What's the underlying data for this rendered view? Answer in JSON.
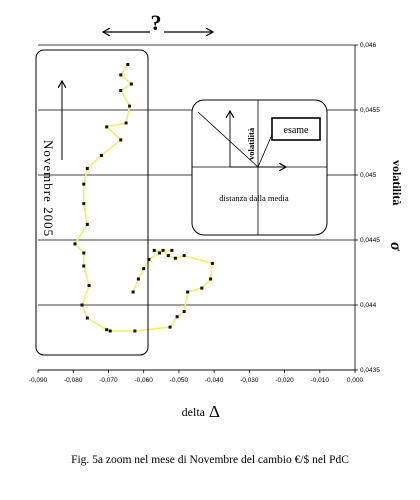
{
  "header": {
    "mark": "?"
  },
  "chart_data": {
    "type": "line",
    "xlabel": "delta",
    "xlabel_symbol": "Δ",
    "ylabel": "volatilità",
    "ylabel_symbol": "σ",
    "xlim": [
      -0.09,
      0.0
    ],
    "ylim": [
      0.0435,
      0.046
    ],
    "x_ticks": [
      -0.09,
      -0.08,
      -0.07,
      -0.06,
      -0.05,
      -0.04,
      -0.03,
      -0.02,
      -0.01,
      0.0
    ],
    "x_tick_labels": [
      "-0,090",
      "-0,080",
      "-0,070",
      "-0,060",
      "-0,050",
      "-0,040",
      "-0,030",
      "-0,020",
      "-0,010",
      "0,000"
    ],
    "y_ticks": [
      0.0435,
      0.044,
      0.0445,
      0.045,
      0.0455,
      0.046
    ],
    "y_tick_labels": [
      "0,0435",
      "0,044",
      "0,0445",
      "0,045",
      "0,0455",
      "0,046"
    ],
    "grid": "horizontal",
    "series": [
      {
        "color": "#f2ee6a",
        "marker_color": "#111111",
        "points": [
          [
            -0.0645,
            0.04585
          ],
          [
            -0.0665,
            0.04577
          ],
          [
            -0.0635,
            0.0457
          ],
          [
            -0.0665,
            0.04565
          ],
          [
            -0.064,
            0.04553
          ],
          [
            -0.065,
            0.0454
          ],
          [
            -0.0705,
            0.04537
          ],
          [
            -0.0665,
            0.04527
          ],
          [
            -0.072,
            0.04515
          ],
          [
            -0.076,
            0.04505
          ],
          [
            -0.077,
            0.04493
          ],
          [
            -0.077,
            0.04478
          ],
          [
            -0.076,
            0.04462
          ],
          [
            -0.0795,
            0.04447
          ],
          [
            -0.077,
            0.0444
          ],
          [
            -0.077,
            0.0443
          ],
          [
            -0.0755,
            0.04415
          ],
          [
            -0.0775,
            0.044
          ],
          [
            -0.076,
            0.0439
          ],
          [
            -0.0705,
            0.04381
          ],
          [
            -0.0695,
            0.0438
          ],
          [
            -0.0625,
            0.0438
          ],
          [
            -0.0525,
            0.04383
          ],
          [
            -0.0505,
            0.04391
          ],
          [
            -0.0485,
            0.04395
          ],
          [
            -0.0475,
            0.0441
          ],
          [
            -0.0435,
            0.04413
          ],
          [
            -0.041,
            0.0442
          ],
          [
            -0.0405,
            0.04432
          ],
          [
            -0.0485,
            0.04438
          ],
          [
            -0.051,
            0.04436
          ],
          [
            -0.053,
            0.04438
          ],
          [
            -0.0545,
            0.04442
          ],
          [
            -0.052,
            0.04442
          ],
          [
            -0.057,
            0.04442
          ],
          [
            -0.0555,
            0.0444
          ],
          [
            -0.0585,
            0.04435
          ],
          [
            -0.06,
            0.04428
          ],
          [
            -0.0615,
            0.0442
          ],
          [
            -0.063,
            0.0441
          ]
        ]
      }
    ],
    "annotations": {
      "zoom_label": "Novembre 2005",
      "inset": {
        "box_label": "esame",
        "axis_label": "volatilità",
        "caption": "distanza dalla media"
      }
    },
    "caption": "Fig. 5a zoom nel mese di Novembre del cambio  €/$  nel PdC"
  }
}
